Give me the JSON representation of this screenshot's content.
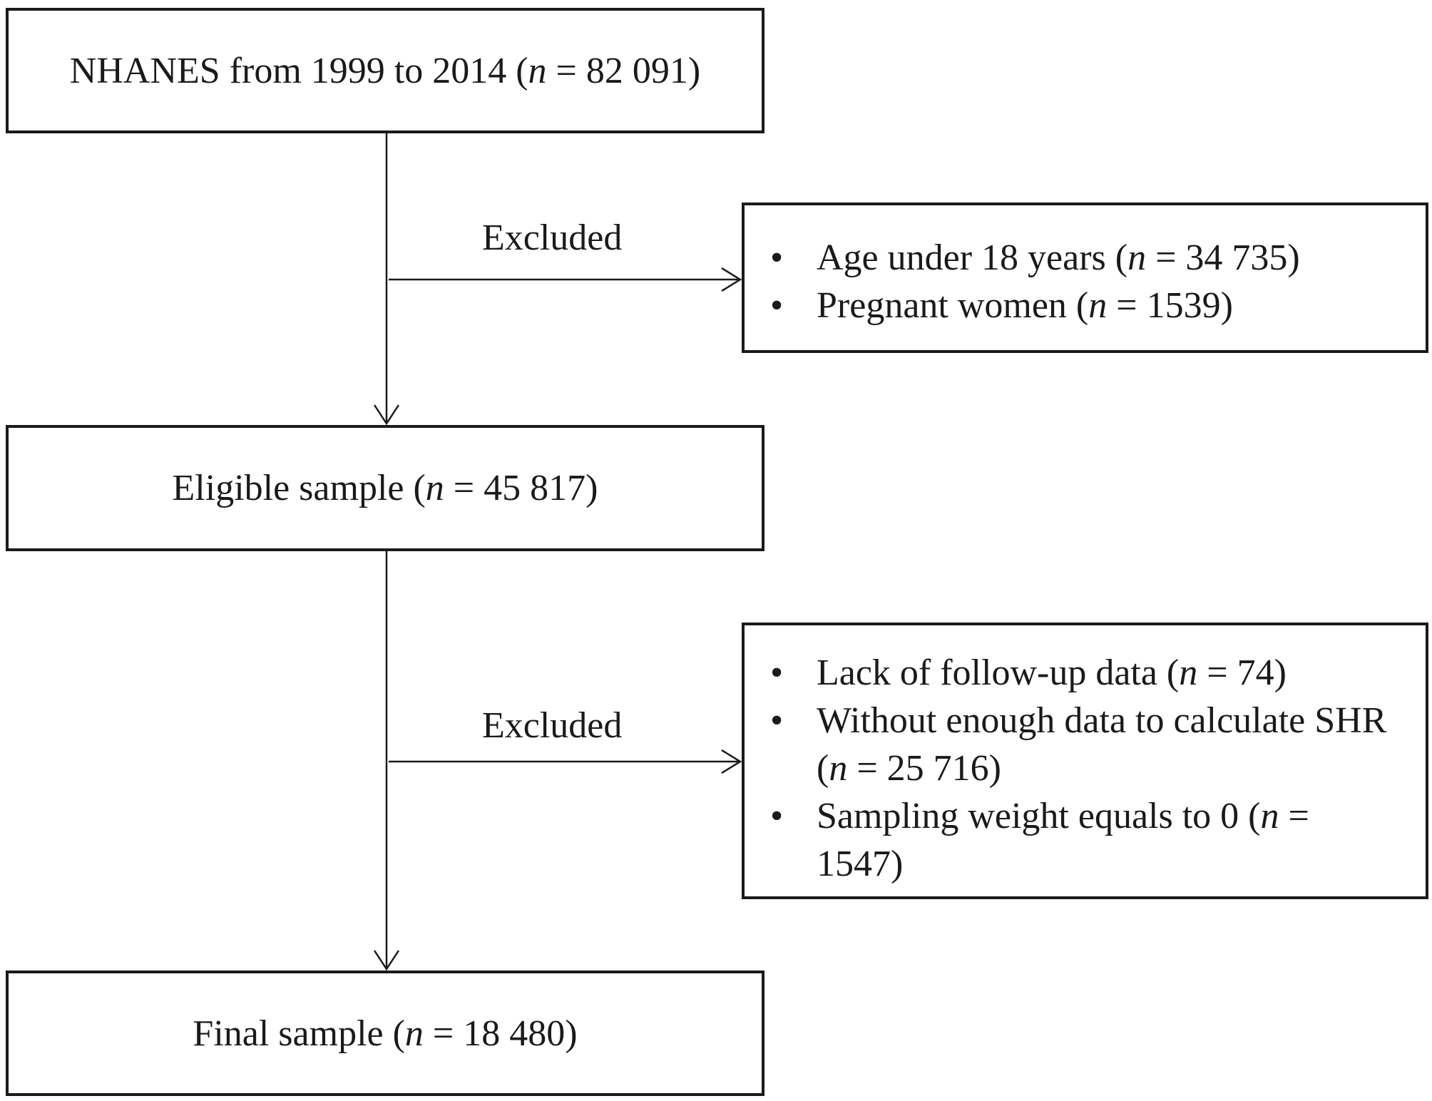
{
  "flow": {
    "start_box": {
      "prefix": "NHANES from 1999 to 2014 (",
      "n_symbol": "n",
      "suffix": " = 82 091)"
    },
    "eligible_box": {
      "prefix": "Eligible sample (",
      "n_symbol": "n",
      "suffix": " = 45 817)"
    },
    "final_box": {
      "prefix": "Final sample (",
      "n_symbol": "n",
      "suffix": " = 18 480)"
    },
    "exclusion_1": {
      "label": "Excluded",
      "items": [
        {
          "prefix": "Age under 18 years (",
          "n_symbol": "n",
          "suffix": " = 34 735)"
        },
        {
          "prefix": "Pregnant women (",
          "n_symbol": "n",
          "suffix": " = 1539)"
        }
      ]
    },
    "exclusion_2": {
      "label": "Excluded",
      "items": [
        {
          "prefix": "Lack of follow-up data (",
          "n_symbol": "n",
          "suffix": " = 74)"
        },
        {
          "prefix": "Without enough data to calculate SHR (",
          "n_symbol": "n",
          "suffix": " = 25 716)"
        },
        {
          "prefix": "Sampling weight equals to 0 (",
          "n_symbol": "n",
          "suffix": " = 1547)"
        }
      ]
    },
    "bullet_glyph": "•"
  }
}
